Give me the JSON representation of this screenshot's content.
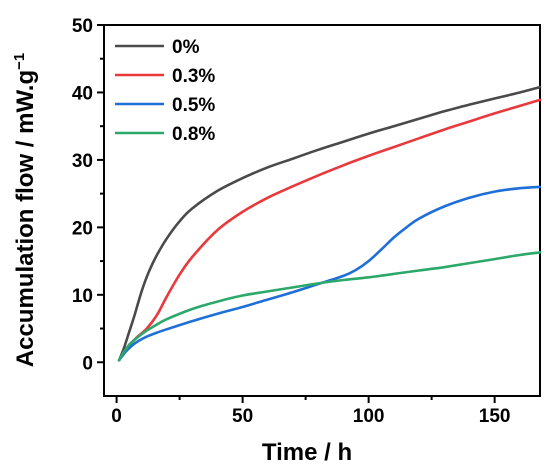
{
  "chart_data": {
    "type": "line",
    "xlabel": "Time / h",
    "ylabel_main": "Accumulation flow / mW.g",
    "ylabel_sup": "−1",
    "xlim": [
      -5,
      168
    ],
    "ylim": [
      -5,
      50
    ],
    "xticks": [
      0,
      50,
      100,
      150
    ],
    "yticks": [
      0,
      10,
      20,
      30,
      40,
      50
    ],
    "grid": false,
    "legend_position": "top-left",
    "series": [
      {
        "name": "0%",
        "color": "#4a4a4a",
        "x": [
          1,
          3,
          5,
          7,
          10,
          13,
          16,
          20,
          25,
          30,
          40,
          50,
          60,
          70,
          80,
          90,
          100,
          110,
          120,
          130,
          140,
          150,
          160,
          168
        ],
        "y": [
          0.3,
          2.2,
          4.5,
          6.8,
          10.6,
          13.6,
          15.9,
          18.4,
          20.9,
          22.8,
          25.4,
          27.3,
          28.9,
          30.2,
          31.5,
          32.7,
          33.9,
          35.0,
          36.1,
          37.2,
          38.2,
          39.1,
          40.0,
          40.8
        ]
      },
      {
        "name": "0.3%",
        "color": "#e8393d",
        "x": [
          1,
          3,
          5,
          8,
          12,
          16,
          20,
          25,
          30,
          40,
          50,
          60,
          70,
          80,
          90,
          100,
          110,
          120,
          130,
          140,
          150,
          160,
          168
        ],
        "y": [
          0.3,
          1.5,
          2.5,
          3.7,
          5.0,
          7.0,
          9.8,
          13.0,
          15.6,
          19.6,
          22.3,
          24.4,
          26.1,
          27.7,
          29.2,
          30.6,
          31.9,
          33.2,
          34.5,
          35.7,
          36.9,
          38.0,
          38.9
        ]
      },
      {
        "name": "0.5%",
        "color": "#1f6fd8",
        "x": [
          1,
          3,
          5,
          8,
          12,
          16,
          20,
          30,
          40,
          50,
          60,
          70,
          80,
          90,
          95,
          100,
          105,
          110,
          115,
          120,
          130,
          140,
          150,
          160,
          168
        ],
        "y": [
          0.3,
          1.3,
          2.1,
          3.0,
          3.8,
          4.4,
          4.9,
          6.1,
          7.2,
          8.2,
          9.3,
          10.4,
          11.6,
          12.8,
          13.7,
          15.0,
          16.7,
          18.5,
          20.0,
          21.3,
          23.1,
          24.4,
          25.3,
          25.8,
          26.0
        ]
      },
      {
        "name": "0.8%",
        "color": "#2ca86a",
        "x": [
          1,
          3,
          5,
          8,
          12,
          16,
          20,
          30,
          40,
          50,
          60,
          70,
          80,
          90,
          100,
          110,
          120,
          130,
          140,
          150,
          160,
          168
        ],
        "y": [
          0.3,
          1.6,
          2.6,
          3.6,
          4.7,
          5.6,
          6.4,
          7.9,
          9.0,
          9.9,
          10.5,
          11.1,
          11.7,
          12.2,
          12.6,
          13.1,
          13.6,
          14.1,
          14.7,
          15.3,
          15.9,
          16.3
        ]
      }
    ]
  }
}
